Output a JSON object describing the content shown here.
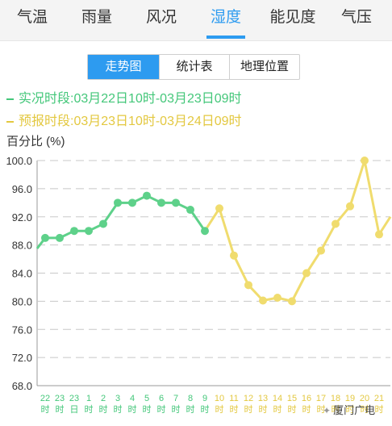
{
  "tabs": [
    {
      "label": "气温",
      "active": false
    },
    {
      "label": "雨量",
      "active": false
    },
    {
      "label": "风况",
      "active": false
    },
    {
      "label": "湿度",
      "active": true
    },
    {
      "label": "能见度",
      "active": false
    },
    {
      "label": "气压",
      "active": false
    }
  ],
  "views": [
    {
      "label": "走势图",
      "active": true
    },
    {
      "label": "统计表",
      "active": false
    },
    {
      "label": "地理位置",
      "active": false
    }
  ],
  "legend": {
    "observed": "实况时段:03月22日10时-03月23日09时",
    "forecast": "预报时段:03月23日10时-03月24日09时"
  },
  "colors": {
    "accent": "#2d9bf0",
    "observed": "#5ed18a",
    "forecast": "#f0dc6e",
    "observed_label": "#44c77a",
    "forecast_label": "#e3c840"
  },
  "chart_data": {
    "type": "line",
    "ylabel": "百分比 (%)",
    "ylim": [
      68.0,
      100.0
    ],
    "yticks": [
      "100.0",
      "96.0",
      "92.0",
      "88.0",
      "84.0",
      "80.0",
      "76.0",
      "72.0",
      "68.0"
    ],
    "categories": [
      [
        "22",
        "时"
      ],
      [
        "23",
        "时"
      ],
      [
        "23",
        "日"
      ],
      [
        "1",
        "时"
      ],
      [
        "2",
        "时"
      ],
      [
        "3",
        "时"
      ],
      [
        "4",
        "时"
      ],
      [
        "5",
        "时"
      ],
      [
        "6",
        "时"
      ],
      [
        "7",
        "时"
      ],
      [
        "8",
        "时"
      ],
      [
        "9",
        "时"
      ],
      [
        "10",
        "时"
      ],
      [
        "11",
        "时"
      ],
      [
        "12",
        "时"
      ],
      [
        "13",
        "时"
      ],
      [
        "14",
        "时"
      ],
      [
        "15",
        "时"
      ],
      [
        "16",
        "时"
      ],
      [
        "17",
        "时"
      ],
      [
        "18",
        "时"
      ],
      [
        "19",
        "时"
      ],
      [
        "20",
        "时"
      ],
      [
        "21",
        "时"
      ]
    ],
    "observed_label_count": 12,
    "series": [
      {
        "key": "observed",
        "leading_value": 87.5,
        "points": [
          {
            "i": 0,
            "v": 89.0
          },
          {
            "i": 1,
            "v": 89.0
          },
          {
            "i": 2,
            "v": 90.0
          },
          {
            "i": 3,
            "v": 90.0
          },
          {
            "i": 4,
            "v": 91.0
          },
          {
            "i": 5,
            "v": 94.0
          },
          {
            "i": 6,
            "v": 94.0
          },
          {
            "i": 7,
            "v": 95.0
          },
          {
            "i": 8,
            "v": 94.0
          },
          {
            "i": 9,
            "v": 94.0
          },
          {
            "i": 10,
            "v": 93.0
          },
          {
            "i": 11,
            "v": 90.0
          }
        ]
      },
      {
        "key": "forecast",
        "trailing_value": 92.0,
        "points": [
          {
            "i": 11,
            "v": 90.0
          },
          {
            "i": 12,
            "v": 93.2
          },
          {
            "i": 13,
            "v": 86.5
          },
          {
            "i": 14,
            "v": 82.3
          },
          {
            "i": 15,
            "v": 80.1
          },
          {
            "i": 16,
            "v": 80.5
          },
          {
            "i": 17,
            "v": 80.0
          },
          {
            "i": 18,
            "v": 84.0
          },
          {
            "i": 19,
            "v": 87.2
          },
          {
            "i": 20,
            "v": 91.0
          },
          {
            "i": 21,
            "v": 93.5
          },
          {
            "i": 22,
            "v": 100.0
          },
          {
            "i": 23,
            "v": 89.5
          }
        ]
      }
    ]
  },
  "watermark": {
    "icon": "wechat-icon",
    "text": "厦门广电"
  }
}
